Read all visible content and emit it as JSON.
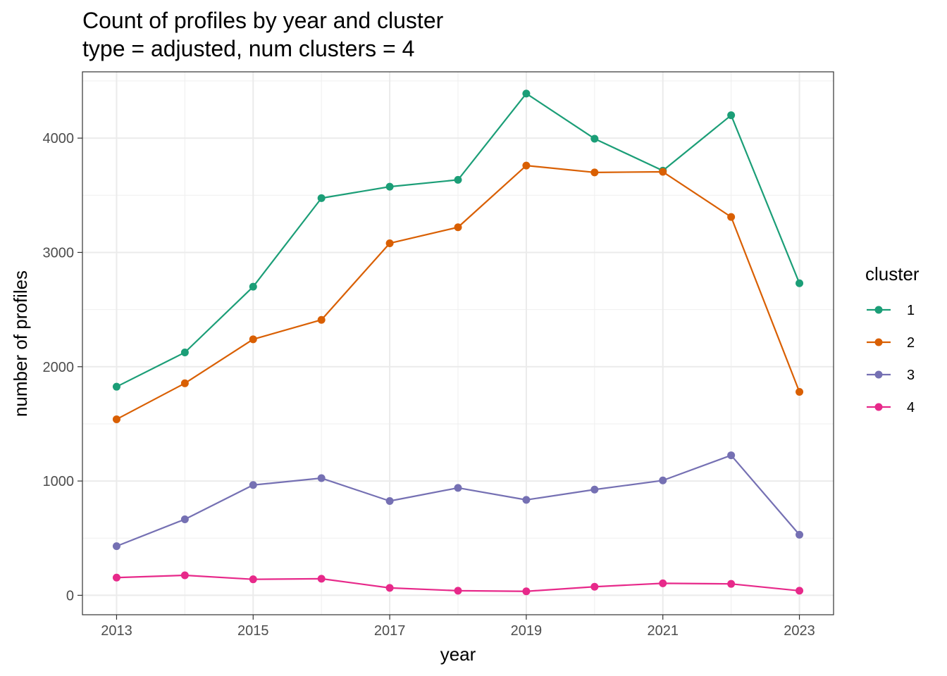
{
  "chart_data": {
    "type": "line",
    "title": "Count of profiles by year and cluster",
    "subtitle": "type = adjusted, num clusters = 4",
    "xlabel": "year",
    "ylabel": "number of profiles",
    "x": [
      2013,
      2014,
      2015,
      2016,
      2017,
      2018,
      2019,
      2020,
      2021,
      2022,
      2023
    ],
    "xticks": [
      2013,
      2015,
      2017,
      2019,
      2021,
      2023
    ],
    "xtick_labels": [
      "2013",
      "2015",
      "2017",
      "2019",
      "2021",
      "2023"
    ],
    "yticks": [
      0,
      1000,
      2000,
      3000,
      4000
    ],
    "ytick_labels": [
      "0",
      "1000",
      "2000",
      "3000",
      "4000"
    ],
    "xlim": [
      2012.5,
      2023.5
    ],
    "ylim": [
      -170,
      4580
    ],
    "grid": true,
    "legend_title": "cluster",
    "legend_position": "right",
    "series": [
      {
        "name": "1",
        "color": "#1b9e77",
        "values": [
          1825,
          2125,
          2700,
          3475,
          3575,
          3635,
          4390,
          3995,
          3715,
          4200,
          2730
        ]
      },
      {
        "name": "2",
        "color": "#d95f02",
        "values": [
          1540,
          1855,
          2240,
          2410,
          3080,
          3220,
          3760,
          3700,
          3705,
          3310,
          1780
        ]
      },
      {
        "name": "3",
        "color": "#7570b3",
        "values": [
          430,
          665,
          965,
          1025,
          825,
          940,
          835,
          925,
          1005,
          1225,
          530
        ]
      },
      {
        "name": "4",
        "color": "#e7298a",
        "values": [
          155,
          175,
          140,
          145,
          65,
          40,
          35,
          75,
          105,
          100,
          40
        ]
      }
    ]
  }
}
